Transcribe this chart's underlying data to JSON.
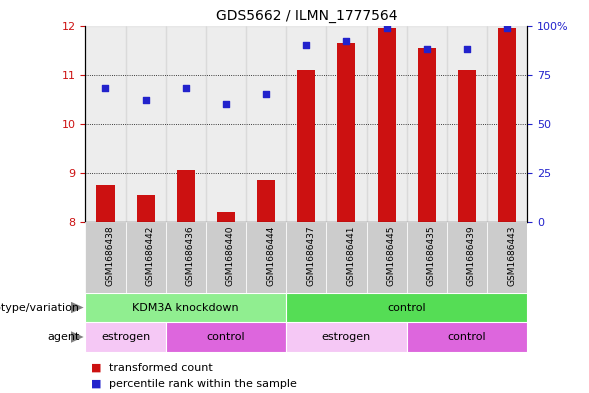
{
  "title": "GDS5662 / ILMN_1777564",
  "samples": [
    "GSM1686438",
    "GSM1686442",
    "GSM1686436",
    "GSM1686440",
    "GSM1686444",
    "GSM1686437",
    "GSM1686441",
    "GSM1686445",
    "GSM1686435",
    "GSM1686439",
    "GSM1686443"
  ],
  "bar_values": [
    8.75,
    8.55,
    9.05,
    8.2,
    8.85,
    11.1,
    11.65,
    11.95,
    11.55,
    11.1,
    11.95
  ],
  "percentile_values": [
    68,
    62,
    68,
    60,
    65,
    90,
    92,
    99,
    88,
    88,
    99
  ],
  "ylim_left": [
    8,
    12
  ],
  "ylim_right": [
    0,
    100
  ],
  "yticks_left": [
    8,
    9,
    10,
    11,
    12
  ],
  "yticks_right": [
    0,
    25,
    50,
    75,
    100
  ],
  "bar_color": "#cc1111",
  "dot_color": "#2222cc",
  "bar_width": 0.45,
  "genotype_groups": [
    {
      "label": "KDM3A knockdown",
      "start": 0,
      "end": 5,
      "color": "#90ee90"
    },
    {
      "label": "control",
      "start": 5,
      "end": 11,
      "color": "#55dd55"
    }
  ],
  "agent_groups": [
    {
      "label": "estrogen",
      "start": 0,
      "end": 2,
      "color": "#f5c8f5"
    },
    {
      "label": "control",
      "start": 2,
      "end": 5,
      "color": "#dd66dd"
    },
    {
      "label": "estrogen",
      "start": 5,
      "end": 8,
      "color": "#f5c8f5"
    },
    {
      "label": "control",
      "start": 8,
      "end": 11,
      "color": "#dd66dd"
    }
  ],
  "legend_items": [
    {
      "label": "transformed count",
      "color": "#cc1111"
    },
    {
      "label": "percentile rank within the sample",
      "color": "#2222cc"
    }
  ],
  "left_labels": [
    "genotype/variation",
    "agent"
  ],
  "sample_bg_color": "#cccccc",
  "grid_yticks": [
    9,
    10,
    11
  ]
}
